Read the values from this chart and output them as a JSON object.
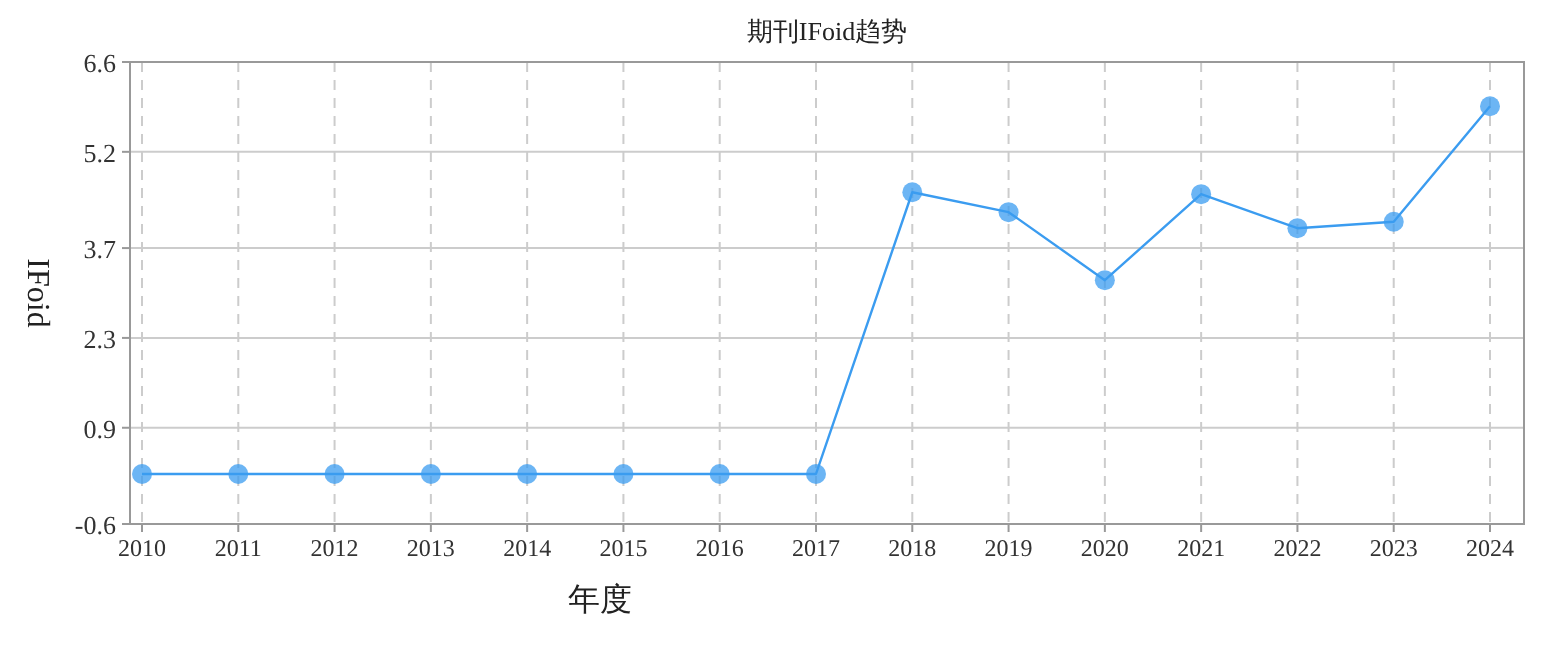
{
  "chart_data": {
    "type": "line",
    "title": "期刊IFoid趋势",
    "xlabel": "年度",
    "ylabel": "IFoid",
    "categories": [
      "2010",
      "2011",
      "2012",
      "2013",
      "2014",
      "2015",
      "2016",
      "2017",
      "2018",
      "2019",
      "2020",
      "2021",
      "2022",
      "2023",
      "2024"
    ],
    "series": [
      {
        "color": "#3b9cf0",
        "values": [
          0.18,
          0.18,
          0.18,
          0.18,
          0.18,
          0.18,
          0.18,
          0.18,
          4.57,
          4.26,
          3.2,
          4.54,
          4.01,
          4.11,
          5.91
        ]
      }
    ],
    "ylim": [
      -0.6,
      6.6
    ],
    "yticks": [
      -0.6,
      0.9,
      2.3,
      3.7,
      5.2,
      6.6
    ],
    "grid": true,
    "marker": "circle"
  }
}
